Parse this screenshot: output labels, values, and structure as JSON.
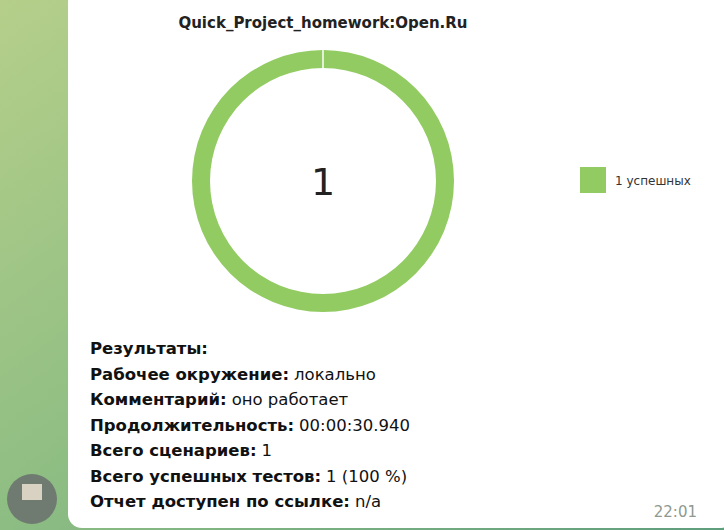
{
  "chart_data": {
    "type": "donut",
    "title": "Quick_Project_homework:Open.Ru",
    "categories": [
      "1 успешных"
    ],
    "values": [
      1
    ],
    "color": "#91cb61",
    "data_labels": true
  },
  "message": {
    "heading": "Результаты:",
    "fields": [
      {
        "label": "Рабочее окружение:",
        "value": "локально"
      },
      {
        "label": "Комментарий:",
        "value": "оно работает"
      },
      {
        "label": "Продолжительность:",
        "value": "00:00:30.940"
      },
      {
        "label": "Всего сценариев:",
        "value": "1"
      },
      {
        "label": "Всего успешных тестов:",
        "value": "1 (100 %)"
      },
      {
        "label": "Отчет доступен по ссылке:",
        "value": "n/a"
      }
    ],
    "time": "22:01"
  }
}
